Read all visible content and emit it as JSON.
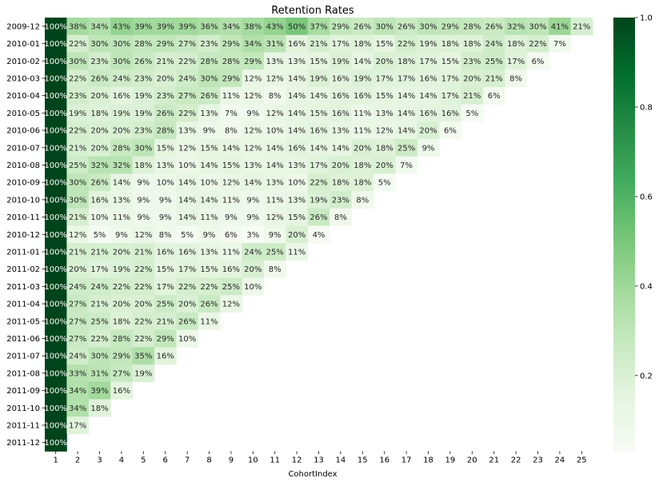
{
  "chart_data": {
    "type": "heatmap",
    "title": "Retention Rates",
    "xlabel": "CohortIndex",
    "ylabel": "",
    "x": [
      1,
      2,
      3,
      4,
      5,
      6,
      7,
      8,
      9,
      10,
      11,
      12,
      13,
      14,
      15,
      16,
      17,
      18,
      19,
      20,
      21,
      22,
      23,
      24,
      25
    ],
    "y": [
      "2009-12",
      "2010-01",
      "2010-02",
      "2010-03",
      "2010-04",
      "2010-05",
      "2010-06",
      "2010-07",
      "2010-08",
      "2010-09",
      "2010-10",
      "2010-11",
      "2010-12",
      "2011-01",
      "2011-02",
      "2011-03",
      "2011-04",
      "2011-05",
      "2011-06",
      "2011-07",
      "2011-08",
      "2011-09",
      "2011-10",
      "2011-11",
      "2011-12"
    ],
    "values": [
      [
        100,
        38,
        34,
        43,
        39,
        39,
        39,
        36,
        34,
        38,
        43,
        50,
        37,
        29,
        26,
        30,
        26,
        30,
        29,
        28,
        26,
        32,
        30,
        41,
        21
      ],
      [
        100,
        22,
        30,
        30,
        28,
        29,
        27,
        23,
        29,
        34,
        31,
        16,
        21,
        17,
        18,
        15,
        22,
        19,
        18,
        18,
        24,
        18,
        22,
        7
      ],
      [
        100,
        30,
        23,
        30,
        26,
        21,
        22,
        28,
        28,
        29,
        13,
        13,
        15,
        19,
        14,
        20,
        18,
        17,
        15,
        23,
        25,
        17,
        6
      ],
      [
        100,
        22,
        26,
        24,
        23,
        20,
        24,
        30,
        29,
        12,
        12,
        14,
        19,
        16,
        19,
        17,
        17,
        16,
        17,
        20,
        21,
        8
      ],
      [
        100,
        23,
        20,
        16,
        19,
        23,
        27,
        26,
        11,
        12,
        8,
        14,
        14,
        16,
        16,
        15,
        14,
        14,
        17,
        21,
        6
      ],
      [
        100,
        19,
        18,
        19,
        19,
        26,
        22,
        13,
        7,
        9,
        12,
        14,
        15,
        16,
        11,
        13,
        14,
        16,
        16,
        5
      ],
      [
        100,
        22,
        20,
        20,
        23,
        28,
        13,
        9,
        8,
        12,
        10,
        14,
        16,
        13,
        11,
        12,
        14,
        20,
        6
      ],
      [
        100,
        21,
        20,
        28,
        30,
        15,
        12,
        15,
        14,
        12,
        14,
        16,
        14,
        14,
        20,
        18,
        25,
        9
      ],
      [
        100,
        25,
        32,
        32,
        18,
        13,
        10,
        14,
        15,
        13,
        14,
        13,
        17,
        20,
        18,
        20,
        7
      ],
      [
        100,
        30,
        26,
        14,
        9,
        10,
        14,
        10,
        12,
        14,
        13,
        10,
        22,
        18,
        18,
        5
      ],
      [
        100,
        30,
        16,
        13,
        9,
        9,
        14,
        14,
        11,
        9,
        11,
        13,
        19,
        23,
        8
      ],
      [
        100,
        21,
        10,
        11,
        9,
        9,
        14,
        11,
        9,
        9,
        12,
        15,
        26,
        8
      ],
      [
        100,
        12,
        5,
        9,
        12,
        8,
        5,
        9,
        6,
        3,
        9,
        20,
        4
      ],
      [
        100,
        21,
        21,
        20,
        21,
        16,
        16,
        13,
        11,
        24,
        25,
        11
      ],
      [
        100,
        20,
        17,
        19,
        22,
        15,
        17,
        15,
        16,
        20,
        8
      ],
      [
        100,
        24,
        24,
        22,
        22,
        17,
        22,
        22,
        25,
        10
      ],
      [
        100,
        27,
        21,
        20,
        20,
        25,
        20,
        26,
        12
      ],
      [
        100,
        27,
        25,
        18,
        22,
        21,
        26,
        11
      ],
      [
        100,
        27,
        22,
        28,
        22,
        29,
        10
      ],
      [
        100,
        24,
        30,
        29,
        35,
        16
      ],
      [
        100,
        33,
        31,
        27,
        19
      ],
      [
        100,
        34,
        39,
        16
      ],
      [
        100,
        34,
        18
      ],
      [
        100,
        17
      ],
      [
        100
      ]
    ],
    "value_suffix": "%",
    "colormap": "Greens",
    "color_range": [
      0,
      1.0
    ],
    "colorbar_ticks": [
      "0.2",
      "0.4",
      "0.6",
      "0.8",
      "1.0"
    ],
    "grid": false
  }
}
